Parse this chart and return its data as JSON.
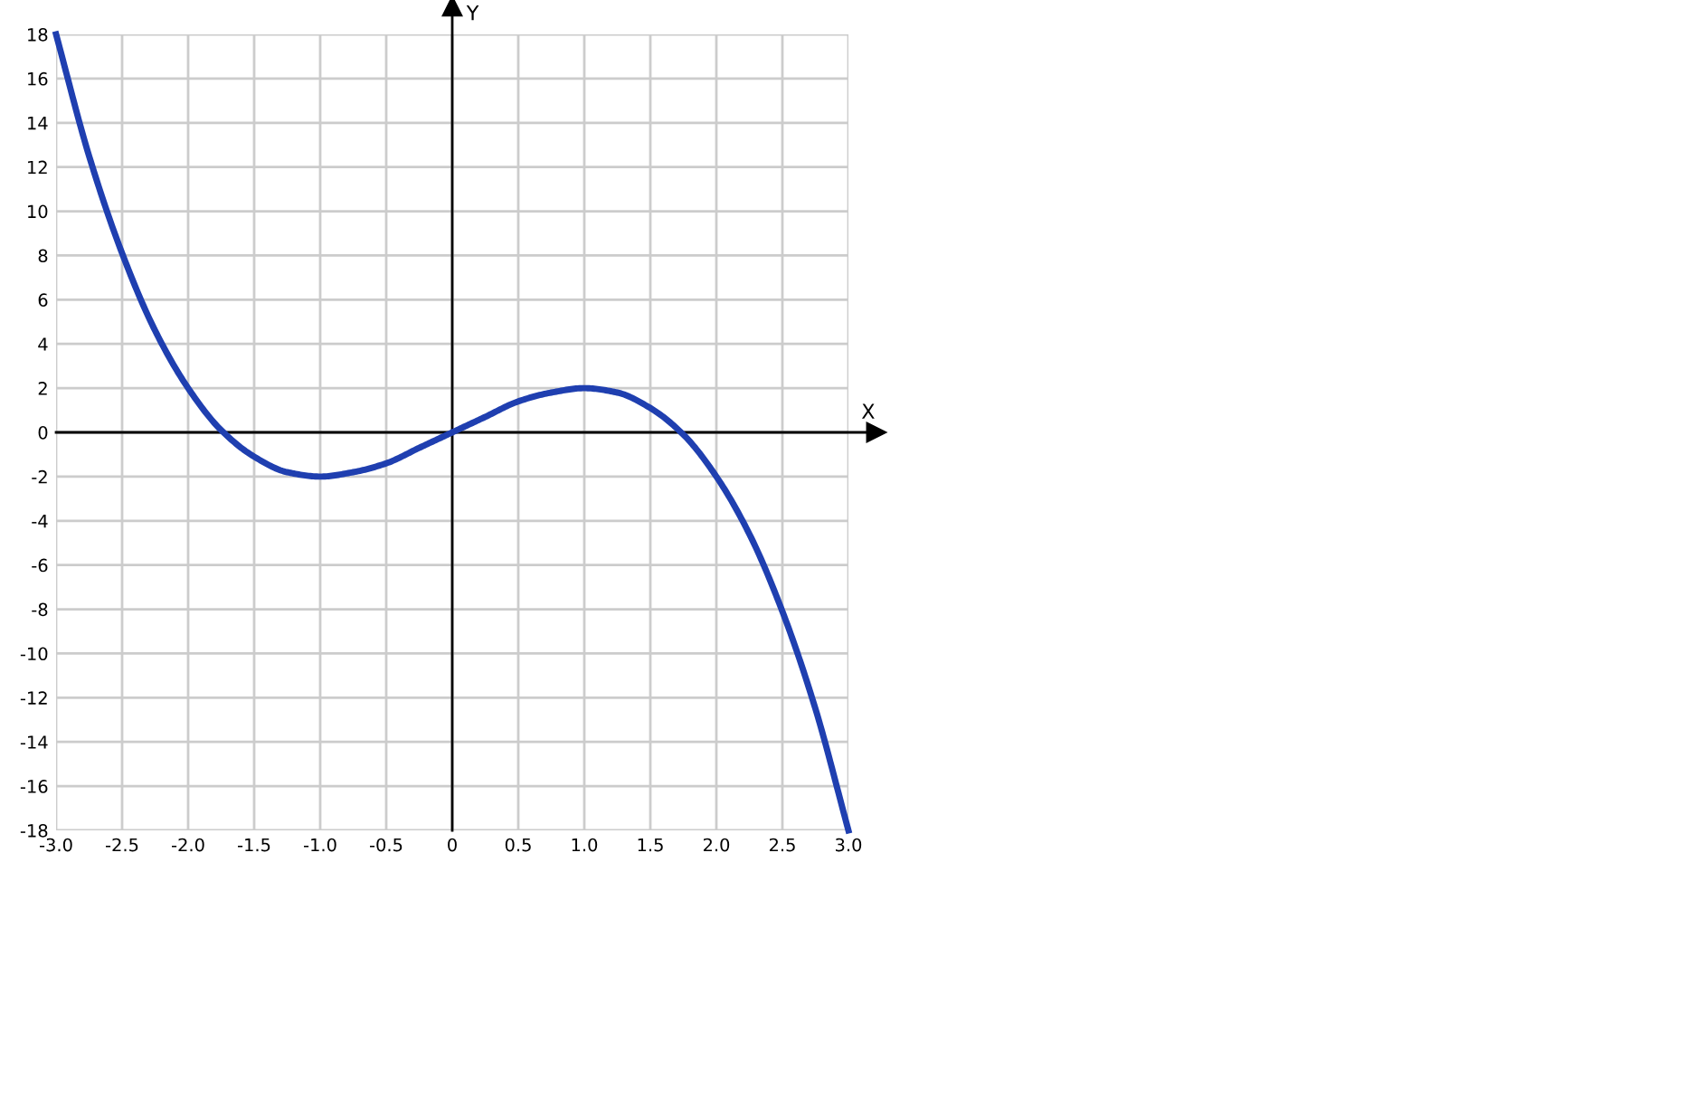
{
  "chart_data": {
    "type": "line",
    "xlabel": "X",
    "ylabel": "Y",
    "x": [
      -3,
      -2.75,
      -2.5,
      -2.25,
      -2,
      -1.75,
      -1.5,
      -1.25,
      -1,
      -0.75,
      -0.5,
      -0.25,
      0,
      0.25,
      0.5,
      0.75,
      1,
      1.25,
      1.5,
      1.75,
      2,
      2.25,
      2.5,
      2.75,
      3
    ],
    "series": [
      {
        "color": "#1f3fb0",
        "values": [
          18,
          12.5,
          8.1,
          4.6,
          2,
          0.1,
          -1.1,
          -1.8,
          -2,
          -1.8,
          -1.4,
          -0.7,
          0,
          0.7,
          1.4,
          1.8,
          2,
          1.8,
          1.1,
          -0.1,
          -2,
          -4.6,
          -8.1,
          -12.5,
          -18
        ]
      }
    ],
    "xlim": [
      -3,
      3
    ],
    "ylim": [
      -18,
      18
    ],
    "xticks": [
      {
        "value": -3,
        "label": "-3.0"
      },
      {
        "value": -2.5,
        "label": "-2.5"
      },
      {
        "value": -2,
        "label": "-2.0"
      },
      {
        "value": -1.5,
        "label": "-1.5"
      },
      {
        "value": -1,
        "label": "-1.0"
      },
      {
        "value": -0.5,
        "label": "-0.5"
      },
      0,
      0.5,
      {
        "value": 1,
        "label": "1.0"
      },
      1.5,
      {
        "value": 2,
        "label": "2.0"
      },
      2.5,
      {
        "value": 3,
        "label": "3.0"
      }
    ],
    "yticks": [
      -18,
      -16,
      -14,
      -12,
      -10,
      -8,
      -6,
      -4,
      -2,
      0,
      2,
      4,
      6,
      8,
      10,
      12,
      14,
      16,
      18
    ],
    "grid": true,
    "line_style": "solid",
    "marker": "none",
    "legend": false
  }
}
